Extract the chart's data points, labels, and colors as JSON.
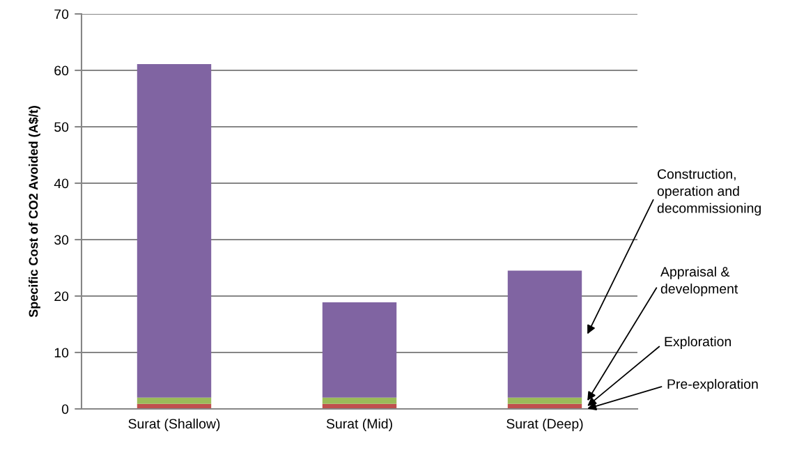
{
  "chart_data": {
    "type": "bar",
    "stacked": true,
    "ylabel": "Specific Cost of CO2 Avoided (A$/t)",
    "categories": [
      "Surat (Shallow)",
      "Surat (Mid)",
      "Surat (Deep)"
    ],
    "series": [
      {
        "name": "Pre-exploration",
        "color": "#4f81bd",
        "values": [
          0.1,
          0.1,
          0.1
        ]
      },
      {
        "name": "Exploration",
        "color": "#c0504d",
        "values": [
          0.8,
          0.8,
          0.8
        ]
      },
      {
        "name": "Appraisal &\ndevelopment",
        "color": "#9bbb59",
        "values": [
          1.1,
          1.1,
          1.1
        ]
      },
      {
        "name": "Construction,\noperation and\ndecommissioning",
        "color": "#8064a2",
        "values": [
          59.1,
          16.9,
          22.5
        ]
      }
    ],
    "ylim": [
      0,
      70
    ],
    "yticks": [
      0,
      10,
      20,
      30,
      40,
      50,
      60,
      70
    ],
    "grid": "y"
  }
}
